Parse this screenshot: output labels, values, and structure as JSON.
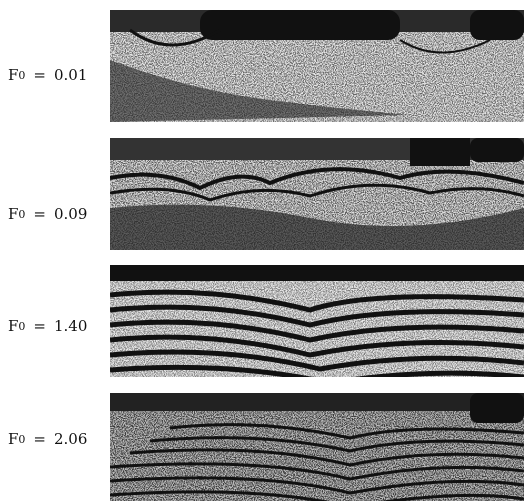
{
  "panels": [
    {
      "symbol": "F",
      "subscript": "0",
      "equals": "=",
      "value": "0.01"
    },
    {
      "symbol": "F",
      "subscript": "0",
      "equals": "=",
      "value": "0.09"
    },
    {
      "symbol": "F",
      "subscript": "0",
      "equals": "=",
      "value": "1.40"
    },
    {
      "symbol": "F",
      "subscript": "0",
      "equals": "=",
      "value": "2.06"
    }
  ]
}
